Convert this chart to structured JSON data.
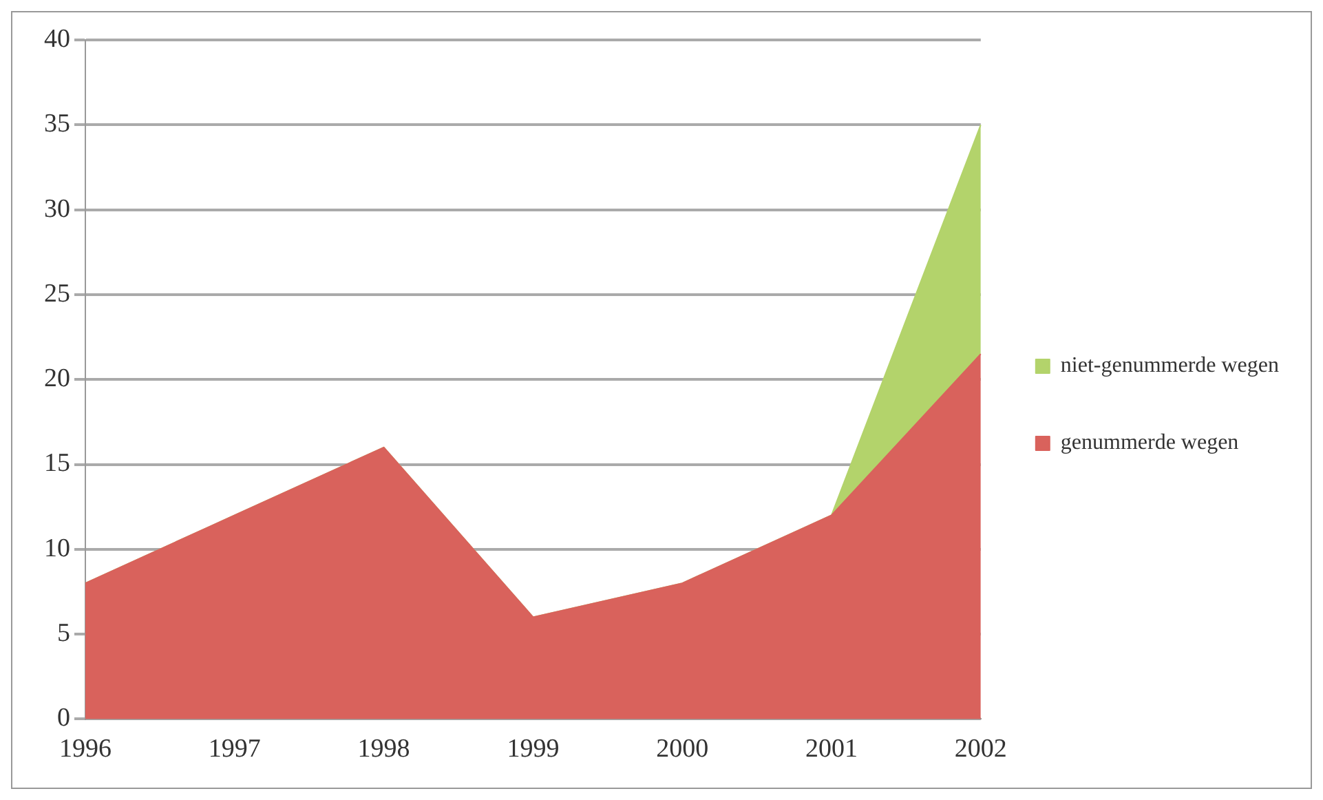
{
  "chart_data": {
    "type": "area",
    "stacked": true,
    "categories": [
      "1996",
      "1997",
      "1998",
      "1999",
      "2000",
      "2001",
      "2002"
    ],
    "series": [
      {
        "name": "genummerde wegen",
        "color": "#d9625c",
        "values": [
          8,
          12,
          16,
          6,
          8,
          12,
          21.5
        ]
      },
      {
        "name": "niet-genummerde wegen",
        "color": "#b3d36b",
        "values": [
          0,
          0,
          0,
          0,
          0,
          0,
          13.5
        ]
      }
    ],
    "ylim": [
      0,
      40
    ],
    "yticks": [
      0,
      5,
      10,
      15,
      20,
      25,
      30,
      35,
      40
    ],
    "grid": "y",
    "legend": "right"
  }
}
